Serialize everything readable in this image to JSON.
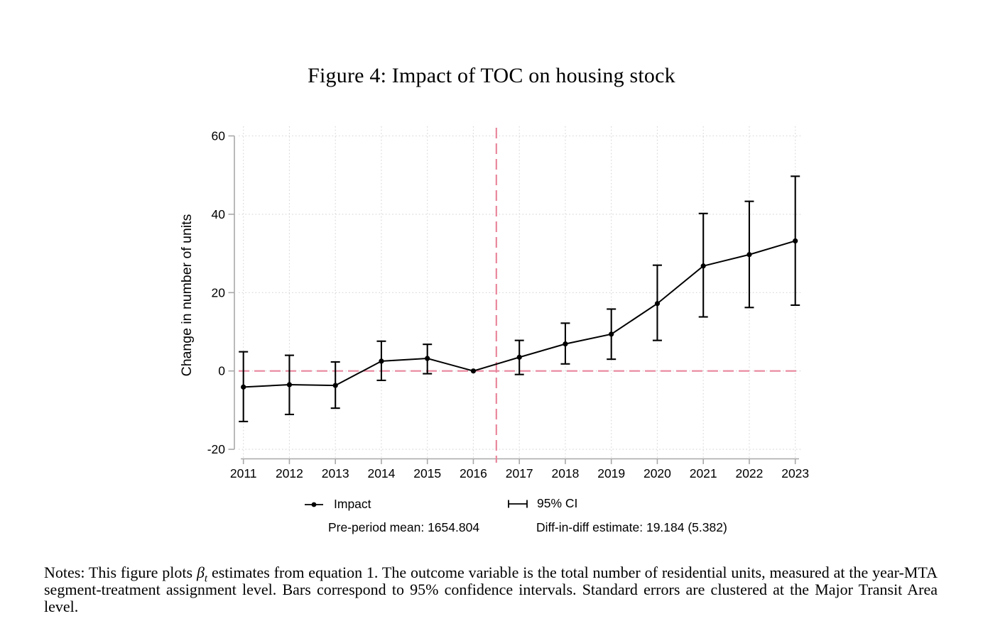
{
  "figure": {
    "title": "Figure 4: Impact of TOC on housing stock"
  },
  "axes": {
    "ylabel": "Change in number of units"
  },
  "chart_data": {
    "type": "line",
    "title": "Figure 4: Impact of TOC on housing stock",
    "xlabel": "",
    "ylabel": "Change in number of units",
    "x": [
      2011,
      2012,
      2013,
      2014,
      2015,
      2016,
      2017,
      2018,
      2019,
      2020,
      2021,
      2022,
      2023
    ],
    "yticks": [
      -20,
      0,
      20,
      40,
      60
    ],
    "ylim": [
      -22,
      62
    ],
    "grid": "dotted, both axes",
    "reference_year": 2016,
    "vline_x": 2016.5,
    "hline_y": 0,
    "series": [
      {
        "name": "Impact",
        "values": [
          -4.1,
          -3.5,
          -3.7,
          2.5,
          3.2,
          0,
          3.5,
          6.9,
          9.4,
          17.2,
          26.8,
          29.7,
          33.2
        ]
      },
      {
        "name": "95% CI lower",
        "values": [
          -12.9,
          -11.1,
          -9.5,
          -2.4,
          -0.7,
          0,
          -0.9,
          1.8,
          3.0,
          7.8,
          13.8,
          16.2,
          16.8
        ]
      },
      {
        "name": "95% CI upper",
        "values": [
          4.9,
          4.0,
          2.3,
          7.6,
          6.8,
          0,
          7.8,
          12.2,
          15.8,
          27.0,
          40.2,
          43.3,
          49.7
        ]
      }
    ],
    "legend_position": "below",
    "legend_entries": [
      "Impact",
      "95% CI"
    ],
    "annotations": [
      "Pre-period mean: 1654.804",
      "Diff-in-diff estimate: 19.184 (5.382)"
    ]
  },
  "legend": {
    "impact_label": "Impact",
    "ci_label": "95% CI",
    "pre_period_mean": "Pre-period mean: 1654.804",
    "did_estimate": "Diff-in-diff estimate: 19.184 (5.382)"
  },
  "notes": {
    "prefix": "Notes:",
    "body_before_beta": "  This figure plots ",
    "beta": "β",
    "beta_sub": "t",
    "body_after_beta": " estimates from equation 1. The outcome variable is the total number of residential units, measured at the year-MTA segment-treatment assignment level. Bars correspond to 95% confidence intervals. Standard errors are clustered at the Major Transit Area level."
  },
  "colors": {
    "data": "#000000",
    "reference_line": "#e9879d",
    "grid": "#d6d6d6",
    "axis": "#a8a8a8",
    "text": "#000000"
  }
}
